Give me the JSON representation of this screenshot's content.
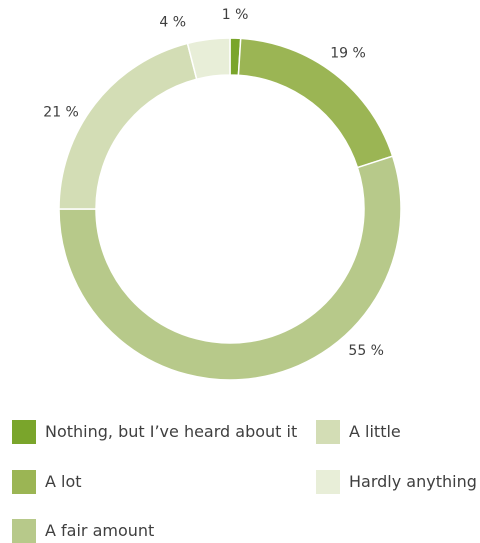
{
  "chart_data": {
    "type": "pie",
    "donut": true,
    "title": "",
    "slices": [
      {
        "label": "Nothing, but I've heard about it",
        "value": 1,
        "value_label": "1 %",
        "color": "#7aa52b"
      },
      {
        "label": "A lot",
        "value": 19,
        "value_label": "19 %",
        "color": "#9bb554"
      },
      {
        "label": "A fair amount",
        "value": 55,
        "value_label": "55 %",
        "color": "#b7c98a"
      },
      {
        "label": "A little",
        "value": 21,
        "value_label": "21 %",
        "color": "#d3ddb5"
      },
      {
        "label": "Hardly anything",
        "value": 4,
        "value_label": "4 %",
        "color": "#e8eed8"
      }
    ],
    "legend_position": "bottom",
    "legend": [
      {
        "label": "Nothing, but I’ve heard about it",
        "color": "#7aa52b"
      },
      {
        "label": "A lot",
        "color": "#9bb554"
      },
      {
        "label": "A fair amount",
        "color": "#b7c98a"
      },
      {
        "label": "A little",
        "color": "#d3ddb5"
      },
      {
        "label": "Hardly anything",
        "color": "#e8eed8"
      }
    ]
  }
}
